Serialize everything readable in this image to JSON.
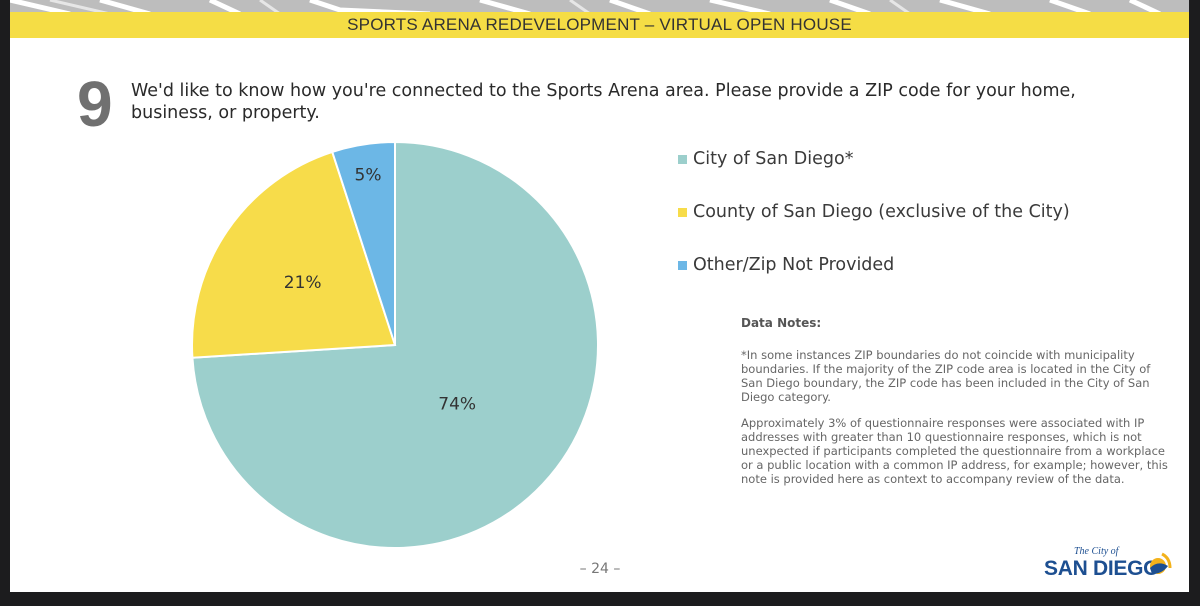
{
  "header": {
    "banner_title": "SPORTS ARENA REDEVELOPMENT – VIRTUAL OPEN HOUSE"
  },
  "question": {
    "number": "9",
    "text": "We'd like to know how you're connected to the Sports Arena area. Please provide a ZIP code for your home, business, or property."
  },
  "colors": {
    "city": "#9ccfcc",
    "county": "#f7dc4a",
    "other": "#6cb7e6",
    "banner": "#f5dd45"
  },
  "chart_data": {
    "type": "pie",
    "title": "",
    "slices": [
      {
        "label": "City of San Diego*",
        "value": 74,
        "display": "74%",
        "color": "#9ccfcc"
      },
      {
        "label": "County of San Diego (exclusive of the City)",
        "value": 21,
        "display": "21%",
        "color": "#f7dc4a"
      },
      {
        "label": "Other/Zip Not Provided",
        "value": 5,
        "display": "5%",
        "color": "#6cb7e6"
      }
    ],
    "legend_position": "right",
    "start_direction": "top, clockwise"
  },
  "notes": {
    "title": "Data Notes:",
    "paragraph1": "*In some instances ZIP boundaries do not coincide with municipality boundaries. If the majority of the ZIP code area is located in the City of San Diego boundary, the ZIP code has been included in the City of San Diego category.",
    "paragraph2": "Approximately 3% of questionnaire responses were associated with IP addresses with greater than 10 questionnaire responses, which is not unexpected if participants completed the questionnaire from a workplace or a public location with a common IP address, for example; however, this note is provided here as context to accompany review of the data."
  },
  "footer": {
    "page_number": "– 24 –",
    "logo_small": "The City of",
    "logo_main": "SAN DIEGO"
  }
}
